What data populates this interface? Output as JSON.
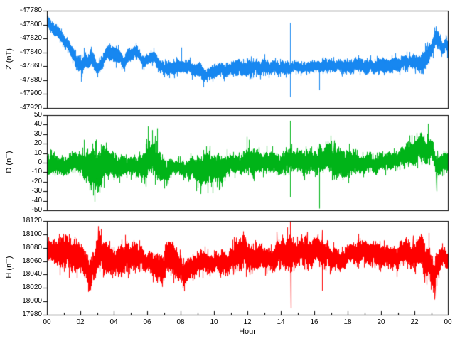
{
  "xlabel": "Hour",
  "xlim": [
    0,
    24
  ],
  "xtick_labels": [
    "00",
    "02",
    "04",
    "06",
    "08",
    "10",
    "12",
    "14",
    "16",
    "18",
    "20",
    "22",
    "00"
  ],
  "chart_data": [
    {
      "type": "line",
      "series": "Z",
      "ylabel": "Z (nT)",
      "color": "#1787f0",
      "ylim": [
        -47920,
        -47780
      ],
      "ytick_step": 20,
      "ytick_labels": [
        "-47780",
        "-47800",
        "-47820",
        "-47840",
        "-47860",
        "-47880",
        "-47900",
        "-47920"
      ],
      "trend_keypoints": [
        [
          0,
          -47795
        ],
        [
          0.2,
          -47803
        ],
        [
          0.5,
          -47808
        ],
        [
          0.8,
          -47814
        ],
        [
          1.0,
          -47822
        ],
        [
          1.3,
          -47834
        ],
        [
          1.6,
          -47845
        ],
        [
          1.9,
          -47856
        ],
        [
          2.1,
          -47862
        ],
        [
          2.3,
          -47850
        ],
        [
          2.45,
          -47855
        ],
        [
          2.6,
          -47846
        ],
        [
          2.8,
          -47852
        ],
        [
          3.0,
          -47861
        ],
        [
          3.2,
          -47856
        ],
        [
          3.5,
          -47845
        ],
        [
          3.7,
          -47841
        ],
        [
          4.0,
          -47844
        ],
        [
          4.3,
          -47846
        ],
        [
          4.6,
          -47852
        ],
        [
          4.9,
          -47842
        ],
        [
          5.2,
          -47836
        ],
        [
          5.5,
          -47846
        ],
        [
          5.8,
          -47853
        ],
        [
          6.1,
          -47846
        ],
        [
          6.4,
          -47844
        ],
        [
          6.7,
          -47856
        ],
        [
          7.0,
          -47862
        ],
        [
          7.5,
          -47860
        ],
        [
          8.0,
          -47859
        ],
        [
          8.5,
          -47863
        ],
        [
          9.0,
          -47866
        ],
        [
          9.35,
          -47872
        ],
        [
          9.7,
          -47868
        ],
        [
          10.2,
          -47867
        ],
        [
          10.7,
          -47866
        ],
        [
          11.2,
          -47863
        ],
        [
          12,
          -47863
        ],
        [
          13,
          -47861
        ],
        [
          14,
          -47862
        ],
        [
          15,
          -47861
        ],
        [
          16,
          -47862
        ],
        [
          17,
          -47860
        ],
        [
          18,
          -47862
        ],
        [
          19,
          -47861
        ],
        [
          20,
          -47862
        ],
        [
          21,
          -47860
        ],
        [
          21.7,
          -47857
        ],
        [
          22.3,
          -47853
        ],
        [
          22.7,
          -47845
        ],
        [
          23.0,
          -47836
        ],
        [
          23.15,
          -47824
        ],
        [
          23.3,
          -47816
        ],
        [
          23.42,
          -47820
        ],
        [
          23.55,
          -47828
        ],
        [
          23.7,
          -47836
        ],
        [
          23.85,
          -47827
        ],
        [
          24,
          -47834
        ]
      ],
      "noise_amplitude_keypoints": [
        [
          0,
          9
        ],
        [
          1,
          10
        ],
        [
          2,
          11
        ],
        [
          3,
          11
        ],
        [
          4,
          10
        ],
        [
          5,
          10
        ],
        [
          6,
          10
        ],
        [
          7,
          10
        ],
        [
          8,
          10
        ],
        [
          9,
          11
        ],
        [
          10,
          10
        ],
        [
          11,
          10
        ],
        [
          12,
          10
        ],
        [
          13,
          10
        ],
        [
          14,
          10
        ],
        [
          15,
          10
        ],
        [
          16,
          10
        ],
        [
          17,
          10
        ],
        [
          18,
          10
        ],
        [
          19,
          10
        ],
        [
          20,
          10
        ],
        [
          21,
          10
        ],
        [
          22,
          11
        ],
        [
          22.8,
          12
        ],
        [
          23.3,
          10
        ],
        [
          24,
          8
        ]
      ],
      "spikes": [
        [
          0.03,
          -47790
        ],
        [
          2.05,
          -47882
        ],
        [
          3.0,
          -47876
        ],
        [
          8.05,
          -47833
        ],
        [
          9.35,
          -47890
        ],
        [
          14.55,
          -47798,
          -47904
        ],
        [
          16.28,
          -47870,
          -47894
        ]
      ]
    },
    {
      "type": "line",
      "series": "D",
      "ylabel": "D (nT)",
      "color": "#00b418",
      "ylim": [
        -50,
        50
      ],
      "ytick_step": 10,
      "ytick_labels": [
        "50",
        "40",
        "30",
        "20",
        "10",
        "0",
        "-10",
        "-20",
        "-30",
        "-40",
        "-50"
      ],
      "trend_keypoints": [
        [
          0,
          -4
        ],
        [
          1,
          -4
        ],
        [
          2,
          -4
        ],
        [
          2.7,
          -8
        ],
        [
          3.3,
          -6
        ],
        [
          4,
          -4
        ],
        [
          5,
          -2
        ],
        [
          5.9,
          2
        ],
        [
          6.3,
          6
        ],
        [
          6.6,
          4
        ],
        [
          7,
          -3
        ],
        [
          8,
          -3
        ],
        [
          9,
          -5
        ],
        [
          9.8,
          -7
        ],
        [
          10.5,
          -4
        ],
        [
          11,
          -2
        ],
        [
          12,
          1
        ],
        [
          13,
          0
        ],
        [
          14,
          1
        ],
        [
          15,
          2
        ],
        [
          16,
          2
        ],
        [
          17,
          2
        ],
        [
          18,
          1
        ],
        [
          19,
          0
        ],
        [
          20,
          2
        ],
        [
          21,
          3
        ],
        [
          21.8,
          8
        ],
        [
          22.3,
          14
        ],
        [
          22.8,
          18
        ],
        [
          23.1,
          8
        ],
        [
          23.3,
          -3
        ],
        [
          23.6,
          0
        ],
        [
          24,
          2
        ]
      ],
      "noise_amplitude_keypoints": [
        [
          0,
          10
        ],
        [
          0.8,
          9
        ],
        [
          1.5,
          11
        ],
        [
          2.2,
          12
        ],
        [
          2.7,
          19
        ],
        [
          3.3,
          17
        ],
        [
          4,
          13
        ],
        [
          4.8,
          9
        ],
        [
          5.4,
          12
        ],
        [
          6,
          20
        ],
        [
          6.6,
          20
        ],
        [
          7,
          13
        ],
        [
          7.6,
          9
        ],
        [
          8.4,
          9
        ],
        [
          9,
          14
        ],
        [
          9.6,
          17
        ],
        [
          10.3,
          14
        ],
        [
          10.8,
          9
        ],
        [
          11.3,
          9
        ],
        [
          11.9,
          14
        ],
        [
          12.5,
          13
        ],
        [
          13,
          12
        ],
        [
          13.6,
          12
        ],
        [
          14.2,
          12
        ],
        [
          14.8,
          11
        ],
        [
          15.4,
          11
        ],
        [
          16,
          11
        ],
        [
          16.6,
          15
        ],
        [
          17.2,
          15
        ],
        [
          18,
          12
        ],
        [
          19,
          10
        ],
        [
          20,
          9
        ],
        [
          20.6,
          9
        ],
        [
          21.2,
          10
        ],
        [
          22,
          13
        ],
        [
          22.6,
          15
        ],
        [
          23,
          13
        ],
        [
          23.4,
          11
        ],
        [
          24,
          10
        ]
      ],
      "spikes": [
        [
          2.2,
          24
        ],
        [
          2.9,
          -28
        ],
        [
          3.15,
          -31
        ],
        [
          3.4,
          -26
        ],
        [
          6.05,
          38
        ],
        [
          6.3,
          34
        ],
        [
          6.45,
          28
        ],
        [
          6.6,
          36
        ],
        [
          7.0,
          -27
        ],
        [
          9.9,
          -32
        ],
        [
          10.3,
          -26
        ],
        [
          11.95,
          27
        ],
        [
          12.1,
          24
        ],
        [
          14.55,
          44,
          -36
        ],
        [
          16.3,
          20,
          -48
        ],
        [
          22.8,
          41
        ],
        [
          23.3,
          -30
        ]
      ]
    },
    {
      "type": "line",
      "series": "H",
      "ylabel": "H (nT)",
      "color": "#ff0000",
      "ylim": [
        17980,
        18120
      ],
      "ytick_step": 20,
      "ytick_labels": [
        "18120",
        "18100",
        "18080",
        "18060",
        "18040",
        "18020",
        "18000",
        "17980"
      ],
      "trend_keypoints": [
        [
          0,
          18072
        ],
        [
          0.5,
          18075
        ],
        [
          1,
          18075
        ],
        [
          1.5,
          18068
        ],
        [
          2,
          18068
        ],
        [
          2.4,
          18052
        ],
        [
          2.6,
          18045
        ],
        [
          2.9,
          18060
        ],
        [
          3.05,
          18080
        ],
        [
          3.3,
          18065
        ],
        [
          4,
          18060
        ],
        [
          4.6,
          18065
        ],
        [
          5,
          18072
        ],
        [
          5.5,
          18068
        ],
        [
          6,
          18062
        ],
        [
          6.5,
          18058
        ],
        [
          6.9,
          18048
        ],
        [
          7.3,
          18062
        ],
        [
          7.5,
          18068
        ],
        [
          7.8,
          18052
        ],
        [
          8.2,
          18045
        ],
        [
          8.6,
          18052
        ],
        [
          9,
          18058
        ],
        [
          9.5,
          18055
        ],
        [
          10,
          18058
        ],
        [
          10.5,
          18062
        ],
        [
          11,
          18065
        ],
        [
          11.5,
          18068
        ],
        [
          11.9,
          18072
        ],
        [
          12.3,
          18065
        ],
        [
          13,
          18065
        ],
        [
          13.5,
          18068
        ],
        [
          14,
          18070
        ],
        [
          14.5,
          18072
        ],
        [
          14.8,
          18068
        ],
        [
          15.2,
          18075
        ],
        [
          15.6,
          18072
        ],
        [
          16,
          18075
        ],
        [
          16.2,
          18078
        ],
        [
          16.4,
          18068
        ],
        [
          17,
          18065
        ],
        [
          17.5,
          18062
        ],
        [
          18,
          18065
        ],
        [
          18.5,
          18068
        ],
        [
          19,
          18065
        ],
        [
          19.5,
          18068
        ],
        [
          20,
          18065
        ],
        [
          20.5,
          18068
        ],
        [
          21,
          18065
        ],
        [
          21.4,
          18072
        ],
        [
          22,
          18068
        ],
        [
          22.3,
          18072
        ],
        [
          22.6,
          18058
        ],
        [
          23,
          18048
        ],
        [
          23.2,
          18045
        ],
        [
          23.5,
          18062
        ],
        [
          23.7,
          18068
        ],
        [
          24,
          18062
        ]
      ],
      "noise_amplitude_keypoints": [
        [
          0,
          16
        ],
        [
          0.5,
          20
        ],
        [
          1,
          23
        ],
        [
          1.5,
          20
        ],
        [
          2,
          19
        ],
        [
          2.5,
          24
        ],
        [
          3,
          28
        ],
        [
          3.5,
          20
        ],
        [
          4,
          18
        ],
        [
          4.5,
          19
        ],
        [
          5,
          20
        ],
        [
          5.5,
          18
        ],
        [
          6,
          16
        ],
        [
          6.5,
          20
        ],
        [
          7,
          24
        ],
        [
          7.5,
          22
        ],
        [
          8,
          24
        ],
        [
          8.5,
          22
        ],
        [
          9,
          18
        ],
        [
          9.5,
          19
        ],
        [
          10,
          19
        ],
        [
          10.5,
          18
        ],
        [
          11,
          19
        ],
        [
          11.5,
          22
        ],
        [
          12,
          24
        ],
        [
          12.5,
          21
        ],
        [
          13,
          21
        ],
        [
          13.5,
          21
        ],
        [
          14,
          22
        ],
        [
          14.5,
          24
        ],
        [
          15,
          22
        ],
        [
          15.5,
          24
        ],
        [
          16,
          26
        ],
        [
          16.5,
          22
        ],
        [
          17,
          19
        ],
        [
          17.5,
          19
        ],
        [
          18,
          19
        ],
        [
          18.5,
          19
        ],
        [
          19,
          19
        ],
        [
          19.5,
          18
        ],
        [
          20,
          18
        ],
        [
          20.5,
          18
        ],
        [
          21,
          19
        ],
        [
          21.5,
          20
        ],
        [
          22,
          19
        ],
        [
          22.5,
          20
        ],
        [
          23,
          22
        ],
        [
          23.3,
          19
        ],
        [
          23.6,
          19
        ],
        [
          24,
          16
        ]
      ],
      "spikes": [
        [
          2.5,
          18040,
          18016
        ],
        [
          3.05,
          18112
        ],
        [
          14.57,
          18119,
          17990
        ],
        [
          16.2,
          18100
        ],
        [
          16.45,
          18106,
          18016
        ],
        [
          21.9,
          18098
        ],
        [
          22.85,
          18102
        ],
        [
          23.2,
          18030,
          18003
        ]
      ]
    }
  ]
}
